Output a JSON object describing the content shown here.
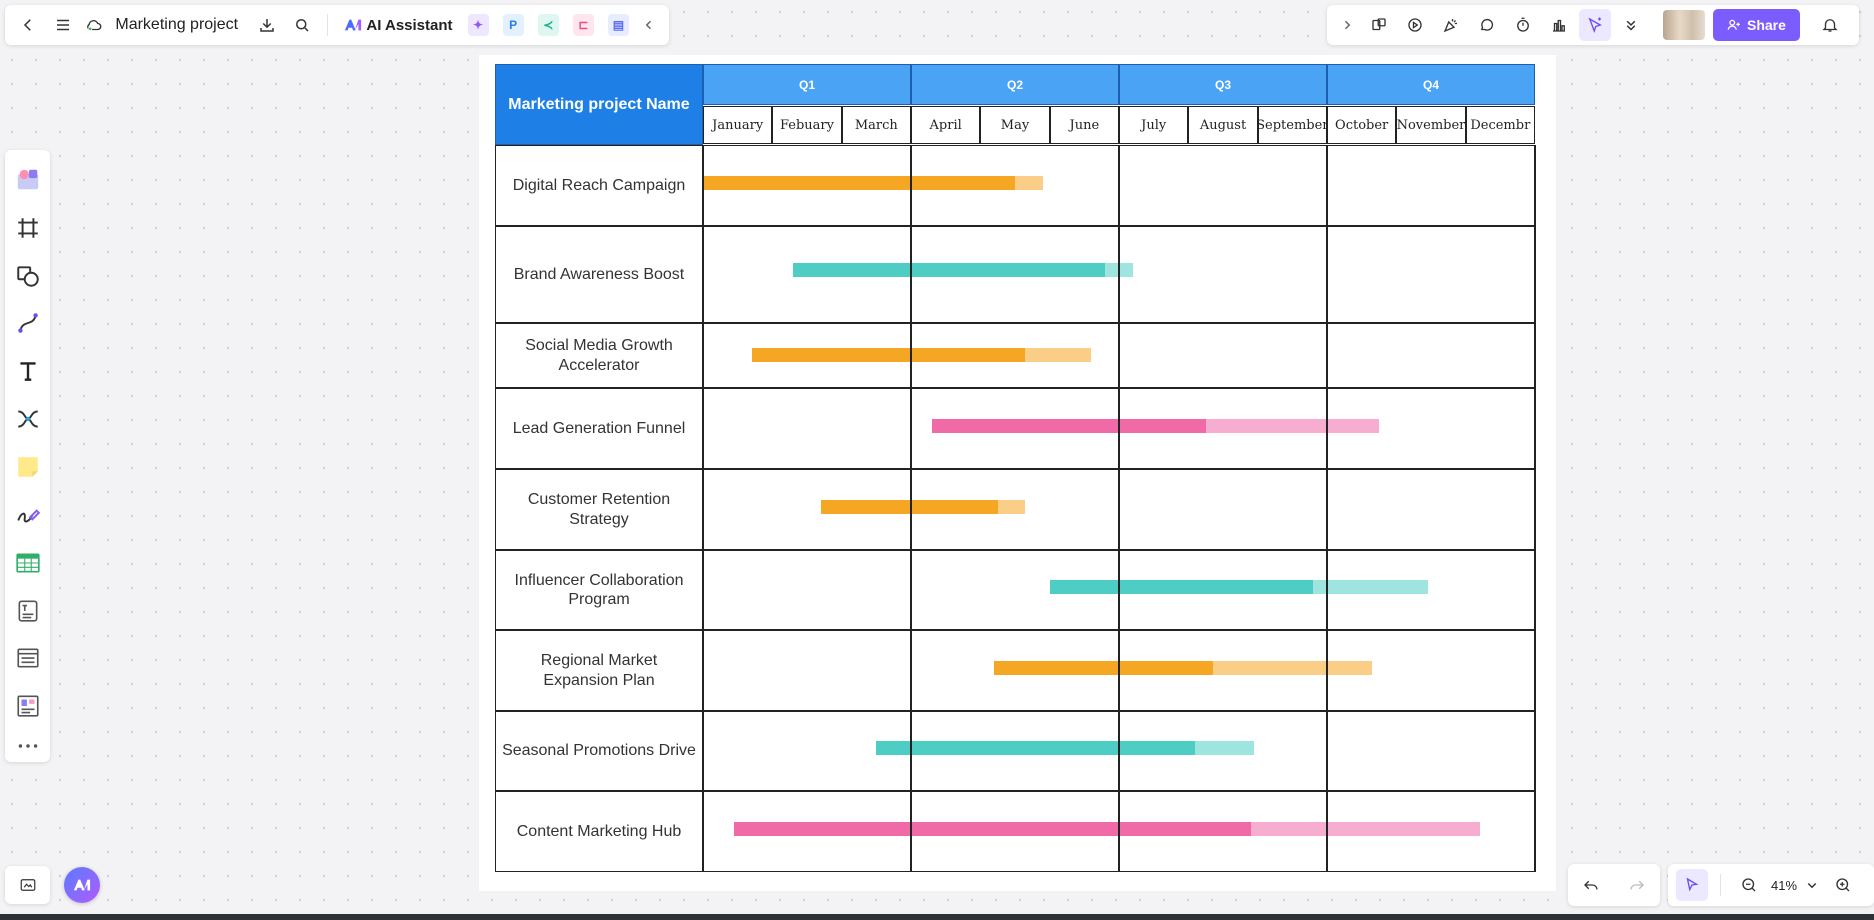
{
  "toolbar": {
    "document_title": "Marketing project",
    "ai_assistant_label": "AI Assistant",
    "share_label": "Share",
    "zoom_level": "41%"
  },
  "gantt": {
    "header_name": "Marketing project Name",
    "quarters": [
      "Q1",
      "Q2",
      "Q3",
      "Q4"
    ],
    "months": [
      "January",
      "Febuary",
      "March",
      "April",
      "May",
      "June",
      "July",
      "August",
      "September",
      "October",
      "November",
      "Decembr"
    ],
    "projects": [
      {
        "name": "Digital Reach Campaign",
        "color": "#f5a623",
        "start_month": 0.0,
        "progress_end": 4.5,
        "end_month": 4.9
      },
      {
        "name": "Brand Awareness Boost",
        "color": "#4ecdc4",
        "start_month": 1.3,
        "progress_end": 5.8,
        "end_month": 6.2
      },
      {
        "name": "Social Media Growth Accelerator",
        "color": "#f5a623",
        "start_month": 0.7,
        "progress_end": 4.65,
        "end_month": 5.6
      },
      {
        "name": "Lead Generation Funnel",
        "color": "#f06aa8",
        "start_month": 3.3,
        "progress_end": 7.25,
        "end_month": 9.75
      },
      {
        "name": "Customer Retention Strategy",
        "color": "#f5a623",
        "start_month": 1.7,
        "progress_end": 4.25,
        "end_month": 4.65
      },
      {
        "name": "Influencer Collaboration Program",
        "color": "#4ecdc4",
        "start_month": 5.0,
        "progress_end": 8.8,
        "end_month": 10.45
      },
      {
        "name": "Regional Market Expansion Plan",
        "color": "#f5a623",
        "start_month": 4.2,
        "progress_end": 7.35,
        "end_month": 9.65
      },
      {
        "name": "Seasonal Promotions Drive",
        "color": "#4ecdc4",
        "start_month": 2.5,
        "progress_end": 7.1,
        "end_month": 7.95
      },
      {
        "name": "Content Marketing Hub",
        "color": "#f06aa8",
        "start_month": 0.45,
        "progress_end": 7.9,
        "end_month": 11.2
      }
    ]
  }
}
